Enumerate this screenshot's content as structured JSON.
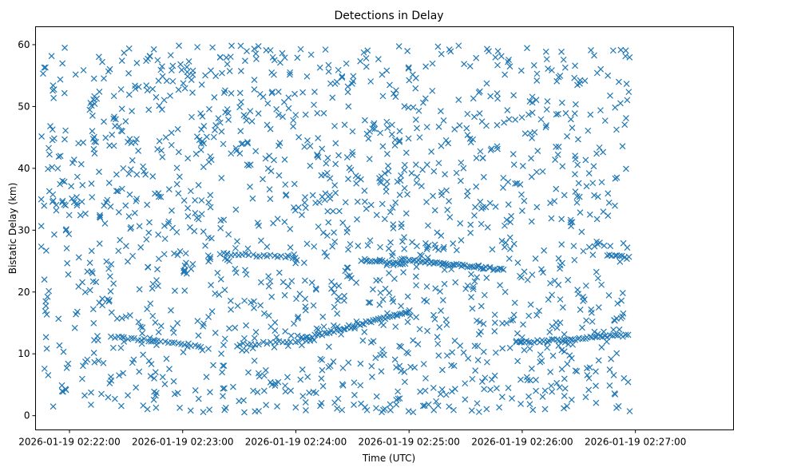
{
  "chart_data": {
    "type": "scatter",
    "title": "Detections in Delay",
    "xlabel": "Time (UTC)",
    "ylabel": "Bistatic Delay (km)",
    "marker": "x",
    "color": "#1f77b4",
    "xlim_seconds": [
      -18,
      352
    ],
    "ylim": [
      -2.3,
      62.9
    ],
    "xticks": [
      {
        "t": 0,
        "label": "2026-01-19 02:22:00"
      },
      {
        "t": 60,
        "label": "2026-01-19 02:23:00"
      },
      {
        "t": 120,
        "label": "2026-01-19 02:24:00"
      },
      {
        "t": 180,
        "label": "2026-01-19 02:25:00"
      },
      {
        "t": 240,
        "label": "2026-01-19 02:26:00"
      },
      {
        "t": 300,
        "label": "2026-01-19 02:27:00"
      }
    ],
    "yticks": [
      0,
      10,
      20,
      30,
      40,
      50,
      60
    ],
    "time_origin": "2026-01-19 02:22:00",
    "x_units": "seconds after 02:22:00",
    "track_segments": [
      {
        "t0": 22,
        "t1": 70,
        "y0": 12.8,
        "y1": 11.3,
        "n": 28
      },
      {
        "t0": 125,
        "t1": 180,
        "y0": 12.5,
        "y1": 16.8,
        "n": 45
      },
      {
        "t0": 90,
        "t1": 130,
        "y0": 11.5,
        "y1": 12.3,
        "n": 20
      },
      {
        "t0": 237,
        "t1": 296,
        "y0": 11.8,
        "y1": 13.0,
        "n": 45
      },
      {
        "t0": 175,
        "t1": 230,
        "y0": 25.3,
        "y1": 23.6,
        "n": 50
      },
      {
        "t0": 155,
        "t1": 178,
        "y0": 25.2,
        "y1": 24.5,
        "n": 18
      },
      {
        "t0": 80,
        "t1": 120,
        "y0": 26.2,
        "y1": 25.6,
        "n": 22
      },
      {
        "t0": 285,
        "t1": 297,
        "y0": 26.0,
        "y1": 25.5,
        "n": 10
      }
    ],
    "clutter": {
      "count": 1550,
      "t_range": [
        -15,
        297
      ],
      "y_range": [
        0.5,
        59.9
      ],
      "seed": 12345
    }
  }
}
